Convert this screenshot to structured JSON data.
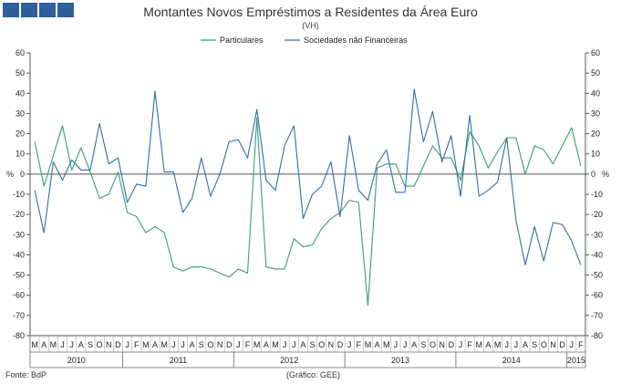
{
  "header": {
    "title": "Montantes Novos Empréstimos a Residentes da Área Euro",
    "subtitle": "(VH)"
  },
  "footer": {
    "source": "Fonte: BdP",
    "credit": "(Gráfico: GEE)"
  },
  "colors": {
    "particulares": "#3a9e6a",
    "sociedades": "#2f6fa8",
    "logo": "#2f5f9b"
  },
  "chart_data": {
    "type": "line",
    "title": "Montantes Novos Empréstimos a Residentes da Área Euro",
    "subtitle": "(VH)",
    "ylabel_left": "%",
    "ylabel_right": "%",
    "ylim": [
      -80,
      60
    ],
    "yticks": [
      -80,
      -70,
      -60,
      -50,
      -40,
      -30,
      -20,
      -10,
      0,
      10,
      20,
      30,
      40,
      50,
      60
    ],
    "grid": false,
    "legend_position": "top-center",
    "month_letters": [
      "M",
      "A",
      "M",
      "J",
      "J",
      "A",
      "S",
      "O",
      "N",
      "D",
      "J",
      "F",
      "M",
      "A",
      "M",
      "J",
      "J",
      "A",
      "S",
      "O",
      "N",
      "D",
      "J",
      "F",
      "M",
      "A",
      "M",
      "J",
      "J",
      "A",
      "S",
      "O",
      "N",
      "D",
      "J",
      "F",
      "M",
      "A",
      "M",
      "J",
      "J",
      "A",
      "S",
      "O",
      "N",
      "D",
      "J",
      "F",
      "M",
      "A",
      "M",
      "J",
      "J",
      "A",
      "S",
      "O",
      "N",
      "D",
      "J",
      "F"
    ],
    "years": [
      {
        "label": "2010",
        "start": 0,
        "end": 10
      },
      {
        "label": "2011",
        "start": 10,
        "end": 22
      },
      {
        "label": "2012",
        "start": 22,
        "end": 34
      },
      {
        "label": "2013",
        "start": 34,
        "end": 46
      },
      {
        "label": "2014",
        "start": 46,
        "end": 58
      },
      {
        "label": "2015",
        "start": 58,
        "end": 60
      }
    ],
    "series": [
      {
        "name": "Particulares",
        "color": "#3a9e6a",
        "values": [
          16,
          -6,
          9,
          24,
          2,
          13,
          1,
          -12,
          -10,
          1,
          -19,
          -21,
          -29,
          -26,
          -29,
          -46,
          -48,
          -46,
          -46,
          -47,
          -49,
          -51,
          -47,
          -49,
          28,
          -46,
          -47,
          -47,
          -32,
          -36,
          -35,
          -27,
          -22,
          -19,
          -13,
          -14,
          -65,
          3,
          5,
          5,
          -6,
          -6,
          4,
          14,
          8,
          8,
          -3,
          21,
          14,
          3,
          11,
          18,
          18,
          0,
          14,
          12,
          5,
          14,
          23,
          4
        ]
      },
      {
        "name": "Sociedades não Financeiras",
        "color": "#2f6fa8",
        "values": [
          -8,
          -29,
          6,
          -3,
          7,
          2,
          2,
          25,
          5,
          8,
          -14,
          -5,
          -6,
          41,
          1,
          1,
          -19,
          -12,
          8,
          -11,
          0,
          16,
          17,
          8,
          32,
          -3,
          -8,
          14,
          24,
          -22,
          -10,
          -6,
          6,
          -21,
          19,
          -8,
          -13,
          5,
          12,
          -9,
          -9,
          42,
          16,
          31,
          6,
          19,
          -11,
          29,
          -11,
          -8,
          -4,
          18,
          -23,
          -45,
          -26,
          -43,
          -24,
          -25,
          -33,
          -45
        ]
      }
    ]
  }
}
